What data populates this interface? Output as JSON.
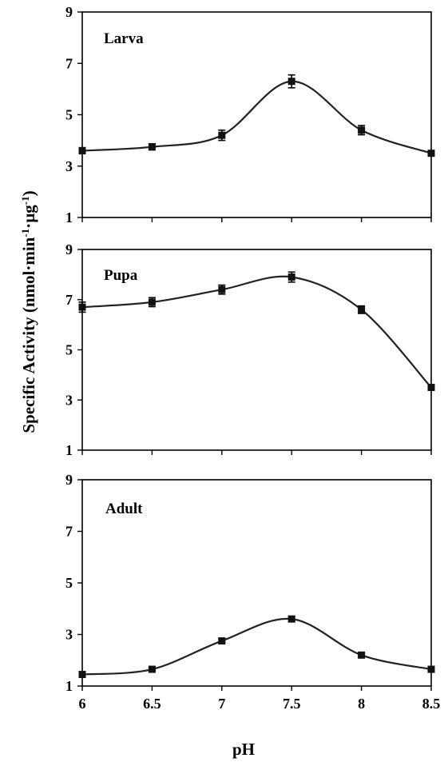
{
  "chart_data": {
    "type": "line",
    "ylabel": {
      "base": "Specific Activity (nmol·min",
      "sup1": "-1",
      "mid": "·µg",
      "sup2": "-1",
      "end": ")"
    },
    "xlabel": "pH",
    "x": [
      6,
      6.5,
      7,
      7.5,
      8,
      8.5
    ],
    "x_tick_labels": [
      "6",
      "6.5",
      "7",
      "7.5",
      "8",
      "8.5"
    ],
    "xlim": [
      6,
      8.5
    ],
    "ylim": [
      1,
      9
    ],
    "y_ticks": [
      "1",
      "3",
      "5",
      "7",
      "9"
    ],
    "line_color": "#222222",
    "panels": [
      {
        "label": "Larva",
        "values": [
          3.6,
          3.75,
          4.2,
          6.3,
          4.4,
          3.5
        ],
        "errors": [
          0.12,
          0.12,
          0.2,
          0.25,
          0.18,
          0.1
        ]
      },
      {
        "label": "Pupa",
        "values": [
          6.7,
          6.9,
          7.4,
          7.9,
          6.6,
          3.5
        ],
        "errors": [
          0.2,
          0.18,
          0.18,
          0.2,
          0.15,
          0.1
        ]
      },
      {
        "label": "Adult",
        "values": [
          1.45,
          1.65,
          2.75,
          3.6,
          2.2,
          1.65
        ],
        "errors": [
          0.05,
          0.05,
          0.08,
          0.1,
          0.08,
          0.08
        ]
      }
    ]
  }
}
